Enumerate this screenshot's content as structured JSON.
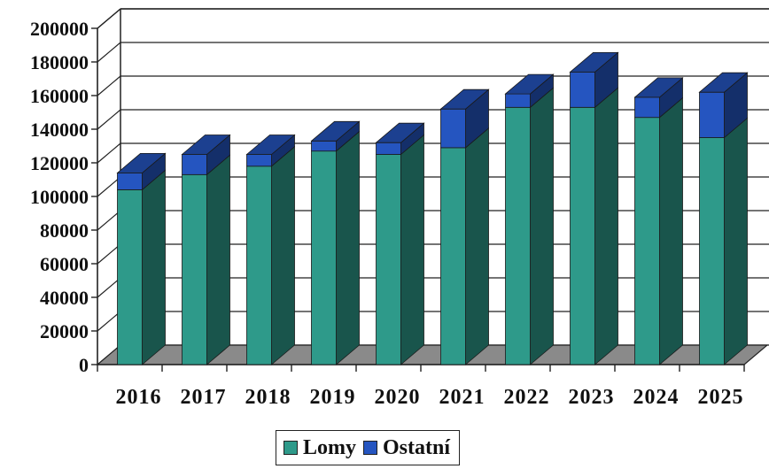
{
  "chart_data": {
    "type": "bar",
    "stacked": true,
    "categories": [
      "2016",
      "2017",
      "2018",
      "2019",
      "2020",
      "2021",
      "2022",
      "2023",
      "2024",
      "2025"
    ],
    "series": [
      {
        "name": "Lomy",
        "color": "#2e9a8a",
        "values": [
          104000,
          113000,
          118000,
          127000,
          125000,
          129000,
          153000,
          153000,
          147000,
          135000
        ]
      },
      {
        "name": "Ostatní",
        "color": "#2555c0",
        "values": [
          10000,
          12000,
          7000,
          6000,
          7000,
          23000,
          8000,
          21000,
          12000,
          27000
        ]
      }
    ],
    "ylim": [
      0,
      200000
    ],
    "yticks": [
      "0",
      "20000",
      "40000",
      "60000",
      "80000",
      "100000",
      "120000",
      "140000",
      "160000",
      "180000",
      "200000"
    ],
    "grid": true,
    "legend_position": "bottom"
  }
}
